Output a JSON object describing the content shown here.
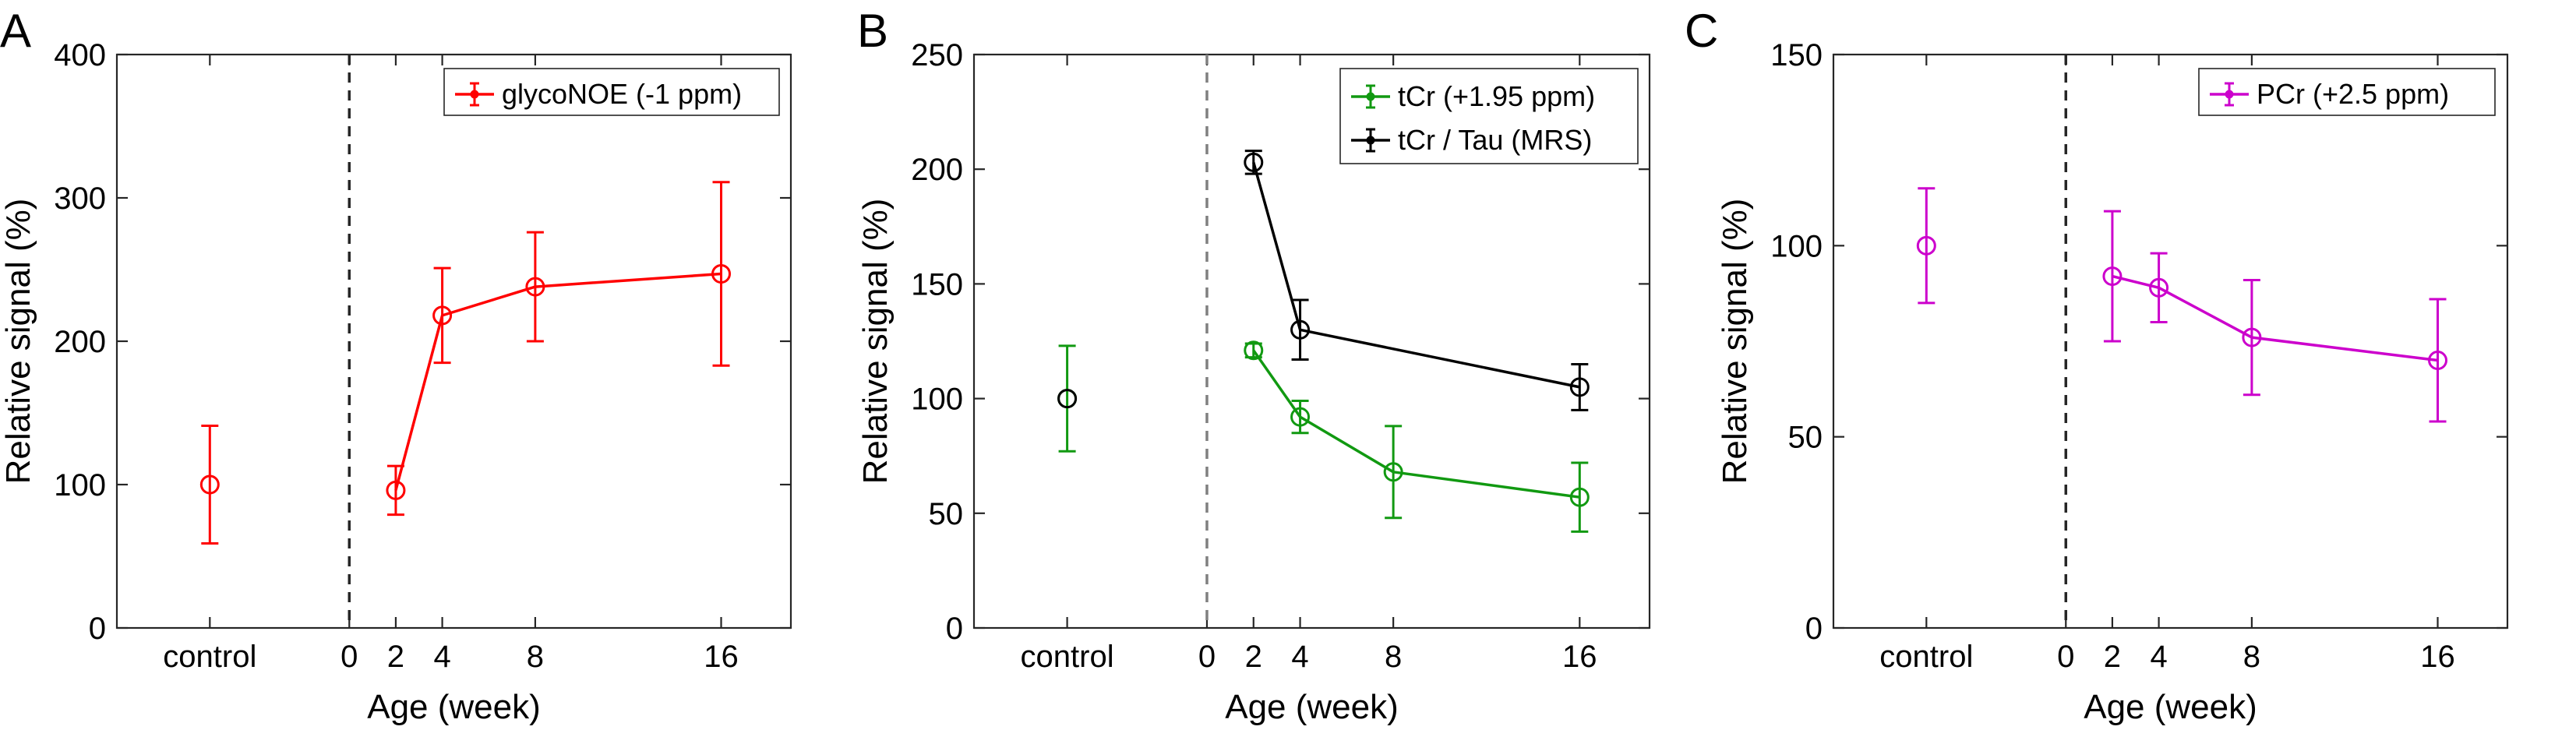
{
  "chart_data": [
    {
      "type": "line",
      "panel_label": "A",
      "xlabel": "Age (week)",
      "ylabel": "Relative signal (%)",
      "ylim": [
        0,
        400
      ],
      "yticks": [
        0,
        100,
        200,
        300,
        400
      ],
      "xticks": [
        {
          "value": -6,
          "label": "control"
        },
        {
          "value": 0,
          "label": "0"
        },
        {
          "value": 2,
          "label": "2"
        },
        {
          "value": 4,
          "label": "4"
        },
        {
          "value": 8,
          "label": "8"
        },
        {
          "value": 16,
          "label": "16"
        }
      ],
      "xlim": [
        -10,
        19
      ],
      "zero_line_color": "#262626",
      "legend_position": "top-right",
      "series": [
        {
          "name": "glycoNOE (-1 ppm)",
          "color": "#ff0000",
          "control": {
            "x": -6,
            "y": 100,
            "err": 41
          },
          "x": [
            2,
            4,
            8,
            16
          ],
          "y": [
            96,
            218,
            238,
            247
          ],
          "err": [
            17,
            33,
            38,
            64
          ]
        }
      ]
    },
    {
      "type": "line",
      "panel_label": "B",
      "xlabel": "Age (week)",
      "ylabel": "Relative signal (%)",
      "ylim": [
        0,
        250
      ],
      "yticks": [
        0,
        50,
        100,
        150,
        200,
        250
      ],
      "xticks": [
        {
          "value": -6,
          "label": "control"
        },
        {
          "value": 0,
          "label": "0"
        },
        {
          "value": 2,
          "label": "2"
        },
        {
          "value": 4,
          "label": "4"
        },
        {
          "value": 8,
          "label": "8"
        },
        {
          "value": 16,
          "label": "16"
        }
      ],
      "xlim": [
        -10,
        19
      ],
      "zero_line_color": "#808080",
      "legend_position": "top-right",
      "series": [
        {
          "name": "tCr (+1.95 ppm)",
          "color": "#119911",
          "control": {
            "x": -6,
            "y": 100,
            "err": 23
          },
          "x": [
            2,
            4,
            8,
            16
          ],
          "y": [
            121,
            92,
            68,
            57
          ],
          "err": [
            3,
            7,
            20,
            15
          ]
        },
        {
          "name": "tCr / Tau (MRS)",
          "color": "#000000",
          "control": {
            "x": -6,
            "y": 100,
            "err": 0
          },
          "x": [
            2,
            4,
            8,
            16
          ],
          "y": [
            203,
            130,
            null,
            105
          ],
          "err": [
            5,
            13,
            0,
            10
          ]
        }
      ]
    },
    {
      "type": "line",
      "panel_label": "C",
      "xlabel": "Age (week)",
      "ylabel": "Relative signal (%)",
      "ylim": [
        0,
        150
      ],
      "yticks": [
        0,
        50,
        100,
        150
      ],
      "xticks": [
        {
          "value": -6,
          "label": "control"
        },
        {
          "value": 0,
          "label": "0"
        },
        {
          "value": 2,
          "label": "2"
        },
        {
          "value": 4,
          "label": "4"
        },
        {
          "value": 8,
          "label": "8"
        },
        {
          "value": 16,
          "label": "16"
        }
      ],
      "xlim": [
        -10,
        19
      ],
      "zero_line_color": "#262626",
      "legend_position": "top-right",
      "series": [
        {
          "name": "PCr (+2.5 ppm)",
          "color": "#cc00cc",
          "control": {
            "x": -6,
            "y": 100,
            "err": 15
          },
          "x": [
            2,
            4,
            8,
            16
          ],
          "y": [
            92,
            89,
            76,
            70
          ],
          "err": [
            17,
            9,
            15,
            16
          ]
        }
      ]
    }
  ]
}
